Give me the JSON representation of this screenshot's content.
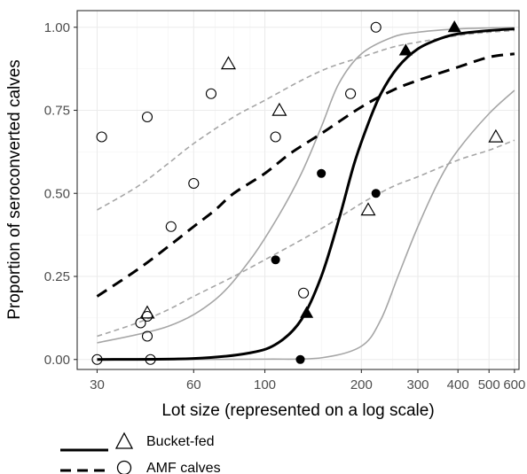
{
  "chart_data": {
    "type": "scatter",
    "title": "",
    "xlabel": "Lot size (represented on a log scale)",
    "ylabel": "Proportion of seroconverted calves",
    "x_scale": "log",
    "xlim": [
      26,
      620
    ],
    "ylim": [
      -0.03,
      1.05
    ],
    "x_ticks": [
      {
        "value": 30,
        "label": "30"
      },
      {
        "value": 60,
        "label": "60"
      },
      {
        "value": 100,
        "label": "100"
      },
      {
        "value": 200,
        "label": "200"
      },
      {
        "value": 300,
        "label": "300"
      },
      {
        "value": 400,
        "label": "400"
      },
      {
        "value": 500,
        "label": "500"
      },
      {
        "value": 600,
        "label": "600"
      }
    ],
    "y_ticks": [
      {
        "value": 0,
        "label": "0.00"
      },
      {
        "value": 0.25,
        "label": "0.25"
      },
      {
        "value": 0.5,
        "label": "0.50"
      },
      {
        "value": 0.75,
        "label": "0.75"
      },
      {
        "value": 1.0,
        "label": "1.00"
      }
    ],
    "grid": true,
    "legend_position": "bottom-left",
    "series": [
      {
        "name": "Bucket-fed",
        "line_style": "solid",
        "marker": "triangle",
        "fit": {
          "x": [
            30,
            60,
            90,
            110,
            130,
            150,
            170,
            190,
            210,
            230,
            260,
            300,
            350,
            400,
            500,
            600
          ],
          "y": [
            0.0,
            0.003,
            0.02,
            0.05,
            0.12,
            0.25,
            0.42,
            0.59,
            0.71,
            0.8,
            0.88,
            0.935,
            0.965,
            0.98,
            0.99,
            0.995
          ]
        },
        "ci_upper": {
          "x": [
            30,
            50,
            70,
            90,
            110,
            130,
            150,
            170,
            200,
            250,
            300,
            400,
            500,
            600
          ],
          "y": [
            0.05,
            0.1,
            0.18,
            0.3,
            0.43,
            0.56,
            0.7,
            0.83,
            0.92,
            0.97,
            0.985,
            0.995,
            0.998,
            0.999
          ]
        },
        "ci_lower": {
          "x": [
            30,
            60,
            100,
            150,
            200,
            230,
            260,
            300,
            350,
            400,
            500,
            600
          ],
          "y": [
            0.0,
            0.0,
            0.001,
            0.005,
            0.04,
            0.12,
            0.25,
            0.4,
            0.54,
            0.63,
            0.74,
            0.81
          ]
        },
        "points_open": [
          {
            "x": 43,
            "y": 0.14
          },
          {
            "x": 77,
            "y": 0.89
          },
          {
            "x": 111,
            "y": 0.75
          },
          {
            "x": 210,
            "y": 0.45
          },
          {
            "x": 525,
            "y": 0.67
          }
        ],
        "points_filled": [
          {
            "x": 135,
            "y": 0.14
          },
          {
            "x": 275,
            "y": 0.93
          },
          {
            "x": 390,
            "y": 1.0
          }
        ]
      },
      {
        "name": "AMF calves",
        "line_style": "dashed",
        "marker": "circle",
        "fit": {
          "x": [
            30,
            40,
            50,
            60,
            70,
            80,
            100,
            120,
            150,
            200,
            250,
            300,
            400,
            500,
            600
          ],
          "y": [
            0.19,
            0.27,
            0.34,
            0.4,
            0.45,
            0.5,
            0.56,
            0.62,
            0.68,
            0.76,
            0.81,
            0.84,
            0.88,
            0.91,
            0.92
          ]
        },
        "ci_upper": {
          "x": [
            30,
            40,
            50,
            60,
            80,
            100,
            130,
            160,
            200,
            250,
            300,
            400,
            500,
            600
          ],
          "y": [
            0.45,
            0.52,
            0.59,
            0.65,
            0.73,
            0.78,
            0.84,
            0.88,
            0.91,
            0.94,
            0.955,
            0.975,
            0.985,
            0.99
          ]
        },
        "ci_lower": {
          "x": [
            30,
            40,
            50,
            60,
            80,
            100,
            130,
            160,
            200,
            250,
            300,
            400,
            500,
            600
          ],
          "y": [
            0.07,
            0.11,
            0.15,
            0.19,
            0.25,
            0.3,
            0.36,
            0.41,
            0.47,
            0.52,
            0.55,
            0.6,
            0.63,
            0.66
          ]
        },
        "points_open": [
          {
            "x": 30,
            "y": 0.0
          },
          {
            "x": 31,
            "y": 0.67
          },
          {
            "x": 41,
            "y": 0.11
          },
          {
            "x": 43,
            "y": 0.07
          },
          {
            "x": 43,
            "y": 0.13
          },
          {
            "x": 44,
            "y": 0.0
          },
          {
            "x": 43,
            "y": 0.73
          },
          {
            "x": 51,
            "y": 0.4
          },
          {
            "x": 60,
            "y": 0.53
          },
          {
            "x": 68,
            "y": 0.8
          },
          {
            "x": 108,
            "y": 0.67
          },
          {
            "x": 132,
            "y": 0.2
          },
          {
            "x": 185,
            "y": 0.8
          },
          {
            "x": 222,
            "y": 1.0
          }
        ],
        "points_filled": [
          {
            "x": 108,
            "y": 0.3
          },
          {
            "x": 129,
            "y": 0.0
          },
          {
            "x": 150,
            "y": 0.56
          },
          {
            "x": 222,
            "y": 0.5
          }
        ]
      }
    ],
    "colors": {
      "fit": "#000000",
      "ci": "#a6a6a6",
      "grid_major": "#ebebeb",
      "grid_minor": "#f2f2f2",
      "panel_border": "#333333",
      "tick_text": "#4d4d4d"
    }
  }
}
